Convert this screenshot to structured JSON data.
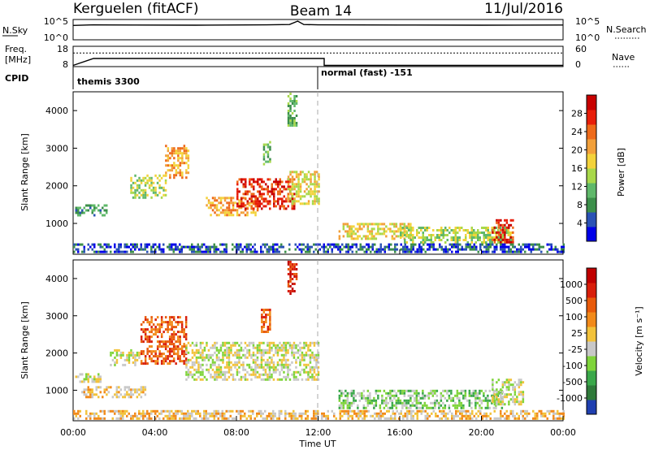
{
  "header": {
    "station": "Kerguelen (fitACF)",
    "beam": "Beam 14",
    "date": "11/Jul/2016"
  },
  "noise_panel": {
    "left_label": "N.Sky",
    "left_ticks": [
      "10^5",
      "10^0"
    ],
    "right_ticks": [
      "10^5",
      "10^0"
    ],
    "right_label": "N.Search"
  },
  "freq_panel": {
    "left_label_1": "Freq.",
    "left_label_2": "[MHz]",
    "left_ticks": [
      "18",
      "8"
    ],
    "right_ticks": [
      "60",
      "0"
    ],
    "right_label": "Nave"
  },
  "cpid": {
    "label": "CPID",
    "segments": [
      {
        "text": "themis 3300",
        "start_hour": 0
      },
      {
        "text": "normal (fast) -151",
        "start_hour": 12.0
      }
    ]
  },
  "power_panel": {
    "ylabel": "Slant Range [km]",
    "yticks": [
      "4000",
      "3000",
      "2000",
      "1000"
    ],
    "colorbar_label": "Power [dB]",
    "colorbar_ticks": [
      "28",
      "24",
      "20",
      "16",
      "12",
      "8",
      "4"
    ],
    "colors": [
      "#0000e8",
      "#2a52b5",
      "#3c8f4a",
      "#5fb86a",
      "#a8d84a",
      "#f3d23a",
      "#f2a03a",
      "#ee6a1a",
      "#e81e0a",
      "#c80000"
    ]
  },
  "velocity_panel": {
    "ylabel": "Slant Range [km]",
    "yticks": [
      "4000",
      "3000",
      "2000",
      "1000"
    ],
    "colorbar_label": "Velocity [m s⁻¹]",
    "colorbar_ticks": [
      "1000",
      "500",
      "100",
      "25",
      "-25",
      "-100",
      "-500",
      "-1000"
    ],
    "colors": [
      "#1f3fb0",
      "#2f7a3a",
      "#3aa84a",
      "#7fd43a",
      "#c8c8c8",
      "#f2c23a",
      "#f28a1a",
      "#e85a0a",
      "#d81e0a",
      "#c00000"
    ]
  },
  "x_axis": {
    "ticks": [
      "00:00",
      "04:00",
      "08:00",
      "12:00",
      "16:00",
      "20:00",
      "00:00"
    ],
    "label": "Time UT"
  },
  "chart_data": {
    "type": "heatmap",
    "title": "Kerguelen (fitACF)  Beam 14  11/Jul/2016",
    "xlabel": "Time UT",
    "ylabel": "Slant Range [km]",
    "xlim_hours": [
      0,
      24
    ],
    "ylim_km": [
      180,
      4500
    ],
    "noise_sky_log": [
      [
        0,
        0.75
      ],
      [
        1.0,
        0.78
      ],
      [
        3.0,
        0.77
      ],
      [
        6.0,
        0.76
      ],
      [
        9.5,
        0.78
      ],
      [
        10.6,
        0.8
      ],
      [
        11.0,
        1.0
      ],
      [
        11.3,
        0.8
      ],
      [
        12.0,
        0.78
      ],
      [
        16.0,
        0.77
      ],
      [
        20.0,
        0.76
      ],
      [
        24.0,
        0.77
      ]
    ],
    "frequency_mhz": [
      [
        0,
        8.6
      ],
      [
        1.0,
        12.0
      ],
      [
        12.3,
        12.0
      ],
      [
        12.3,
        8.6
      ],
      [
        24.0,
        8.6
      ]
    ],
    "nave": [
      [
        0,
        40
      ],
      [
        24,
        40
      ]
    ],
    "power_regions": [
      {
        "t0": 0.1,
        "t1": 1.6,
        "r0": 1200,
        "r1": 1500,
        "level": 2
      },
      {
        "t0": 2.8,
        "t1": 4.5,
        "r0": 1700,
        "r1": 2300,
        "level": 4
      },
      {
        "t0": 4.5,
        "t1": 5.6,
        "r0": 2200,
        "r1": 3100,
        "level": 6
      },
      {
        "t0": 6.5,
        "t1": 9.0,
        "r0": 1200,
        "r1": 1700,
        "level": 6
      },
      {
        "t0": 8.0,
        "t1": 10.8,
        "r0": 1400,
        "r1": 2200,
        "level": 8
      },
      {
        "t0": 10.5,
        "t1": 12.0,
        "r0": 1500,
        "r1": 2400,
        "level": 5
      },
      {
        "t0": 9.3,
        "t1": 9.6,
        "r0": 2600,
        "r1": 3200,
        "level": 3
      },
      {
        "t0": 10.5,
        "t1": 10.9,
        "r0": 3600,
        "r1": 4500,
        "level": 3
      },
      {
        "t0": 13.0,
        "t1": 16.5,
        "r0": 600,
        "r1": 1000,
        "level": 5
      },
      {
        "t0": 16.0,
        "t1": 21.5,
        "r0": 500,
        "r1": 900,
        "level": 4
      },
      {
        "t0": 20.5,
        "t1": 21.5,
        "r0": 500,
        "r1": 1100,
        "level": 8
      },
      {
        "t0": 0.0,
        "t1": 24.0,
        "r0": 200,
        "r1": 450,
        "level": 1
      }
    ],
    "velocity_regions": [
      {
        "t0": 0.1,
        "t1": 1.3,
        "r0": 1250,
        "r1": 1450,
        "level": 4
      },
      {
        "t0": 1.8,
        "t1": 3.2,
        "r0": 1700,
        "r1": 2100,
        "level": 4
      },
      {
        "t0": 3.3,
        "t1": 5.5,
        "r0": 1700,
        "r1": 3000,
        "level": 7
      },
      {
        "t0": 5.5,
        "t1": 12.0,
        "r0": 1300,
        "r1": 2300,
        "level": 4
      },
      {
        "t0": 9.2,
        "t1": 9.6,
        "r0": 2600,
        "r1": 3200,
        "level": 7
      },
      {
        "t0": 10.5,
        "t1": 10.9,
        "r0": 3600,
        "r1": 4500,
        "level": 8
      },
      {
        "t0": 0.4,
        "t1": 3.5,
        "r0": 800,
        "r1": 1100,
        "level": 5
      },
      {
        "t0": 13.0,
        "t1": 21.0,
        "r0": 500,
        "r1": 1000,
        "level": 3
      },
      {
        "t0": 20.5,
        "t1": 22.0,
        "r0": 600,
        "r1": 1300,
        "level": 4
      },
      {
        "t0": 0.0,
        "t1": 24.0,
        "r0": 200,
        "r1": 450,
        "level": 5
      }
    ]
  }
}
